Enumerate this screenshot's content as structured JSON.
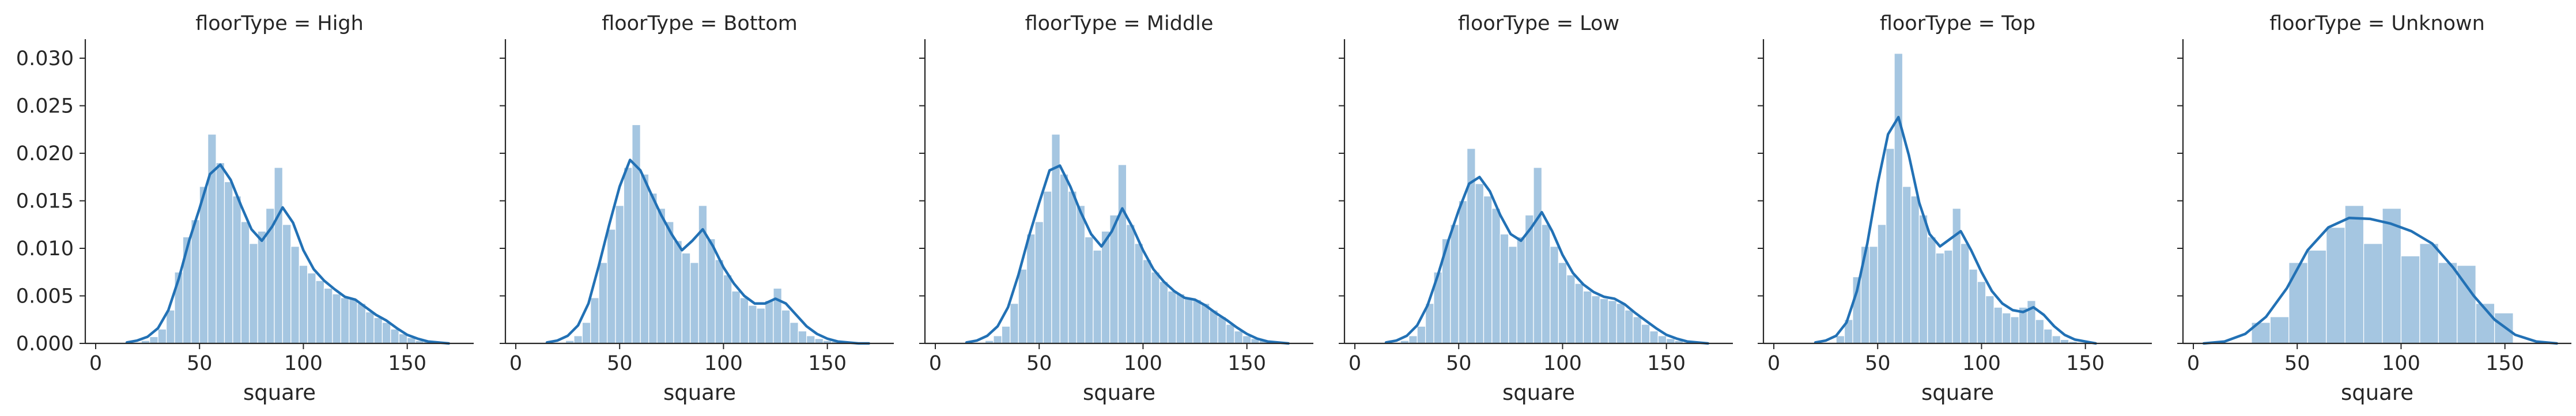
{
  "figure": {
    "hist_color": "#a5c6e1",
    "kde_color": "#2271b5",
    "axis_color": "#262626"
  },
  "chart_data": [
    {
      "type": "histogram-kde",
      "title": "floorType = High",
      "xlabel": "square",
      "ylabel": "",
      "xlim": [
        -5,
        182
      ],
      "ylim": [
        0,
        0.032
      ],
      "xticks": [
        0,
        50,
        100,
        150
      ],
      "yticks": [
        0,
        0.005,
        0.01,
        0.015,
        0.02,
        0.025,
        0.03
      ],
      "hist": {
        "bin_edges": [
          22,
          26,
          30,
          34,
          38,
          42,
          46,
          50,
          54,
          58,
          62,
          66,
          70,
          74,
          78,
          82,
          86,
          90,
          94,
          98,
          102,
          106,
          110,
          114,
          118,
          122,
          126,
          130,
          134,
          138,
          142,
          146,
          150,
          154,
          158,
          162
        ],
        "counts": [
          0.0003,
          0.0007,
          0.0015,
          0.0035,
          0.0075,
          0.0112,
          0.013,
          0.0165,
          0.022,
          0.019,
          0.017,
          0.0155,
          0.0128,
          0.0105,
          0.0118,
          0.0142,
          0.0185,
          0.0125,
          0.0102,
          0.0082,
          0.0074,
          0.0066,
          0.0058,
          0.0052,
          0.0048,
          0.0047,
          0.0042,
          0.0033,
          0.0027,
          0.0022,
          0.0015,
          0.001,
          0.0006,
          0.0003,
          0.0002
        ]
      },
      "kde": {
        "x": [
          15,
          20,
          25,
          30,
          35,
          40,
          45,
          50,
          55,
          60,
          65,
          70,
          75,
          80,
          85,
          90,
          95,
          100,
          105,
          110,
          115,
          120,
          125,
          130,
          135,
          140,
          145,
          150,
          155,
          160,
          165,
          170
        ],
        "y": [
          0.0001,
          0.0003,
          0.0007,
          0.0016,
          0.0035,
          0.0068,
          0.0108,
          0.0142,
          0.0178,
          0.0188,
          0.0172,
          0.0145,
          0.012,
          0.0108,
          0.0123,
          0.0143,
          0.0127,
          0.0098,
          0.0078,
          0.0066,
          0.0057,
          0.0049,
          0.0046,
          0.0038,
          0.003,
          0.0024,
          0.0016,
          0.0009,
          0.0005,
          0.0002,
          0.0001,
          0.0
        ]
      }
    },
    {
      "type": "histogram-kde",
      "title": "floorType = Bottom",
      "xlabel": "square",
      "ylabel": "",
      "xlim": [
        -5,
        182
      ],
      "ylim": [
        0,
        0.032
      ],
      "xticks": [
        0,
        50,
        100,
        150
      ],
      "yticks": [
        0,
        0.005,
        0.01,
        0.015,
        0.02,
        0.025,
        0.03
      ],
      "hist": {
        "bin_edges": [
          24,
          28,
          32,
          36,
          40,
          44,
          48,
          52,
          56,
          60,
          64,
          68,
          72,
          76,
          80,
          84,
          88,
          92,
          96,
          100,
          104,
          108,
          112,
          116,
          120,
          124,
          128,
          132,
          136,
          140,
          144,
          148,
          152,
          156
        ],
        "counts": [
          0.0003,
          0.0008,
          0.0022,
          0.0048,
          0.0085,
          0.012,
          0.0145,
          0.0185,
          0.023,
          0.0178,
          0.0158,
          0.0142,
          0.0128,
          0.0108,
          0.0095,
          0.0085,
          0.0145,
          0.011,
          0.0088,
          0.0072,
          0.0055,
          0.0048,
          0.004,
          0.0037,
          0.0045,
          0.0058,
          0.0035,
          0.0022,
          0.0013,
          0.0008,
          0.0005,
          0.0003,
          0.0002
        ]
      },
      "kde": {
        "x": [
          15,
          20,
          25,
          30,
          35,
          40,
          45,
          50,
          55,
          60,
          65,
          70,
          75,
          80,
          85,
          90,
          95,
          100,
          105,
          110,
          115,
          120,
          125,
          130,
          135,
          140,
          145,
          150,
          155,
          160,
          165,
          170
        ],
        "y": [
          0.0001,
          0.0003,
          0.0008,
          0.0019,
          0.0042,
          0.0082,
          0.0125,
          0.0165,
          0.0193,
          0.0182,
          0.0158,
          0.0135,
          0.0115,
          0.0098,
          0.0108,
          0.012,
          0.0102,
          0.008,
          0.0063,
          0.005,
          0.0042,
          0.0042,
          0.0047,
          0.0042,
          0.003,
          0.0018,
          0.001,
          0.0005,
          0.0002,
          0.0001,
          0.0,
          0.0
        ]
      }
    },
    {
      "type": "histogram-kde",
      "title": "floorType = Middle",
      "xlabel": "square",
      "ylabel": "",
      "xlim": [
        -5,
        182
      ],
      "ylim": [
        0,
        0.032
      ],
      "xticks": [
        0,
        50,
        100,
        150
      ],
      "yticks": [
        0,
        0.005,
        0.01,
        0.015,
        0.02,
        0.025,
        0.03
      ],
      "hist": {
        "bin_edges": [
          24,
          28,
          32,
          36,
          40,
          44,
          48,
          52,
          56,
          60,
          64,
          68,
          72,
          76,
          80,
          84,
          88,
          92,
          96,
          100,
          104,
          108,
          112,
          116,
          120,
          124,
          128,
          132,
          136,
          140,
          144,
          148,
          152,
          156,
          160
        ],
        "counts": [
          0.0003,
          0.0008,
          0.0018,
          0.0042,
          0.0078,
          0.0115,
          0.0128,
          0.016,
          0.022,
          0.0178,
          0.016,
          0.0145,
          0.0112,
          0.0098,
          0.0118,
          0.0135,
          0.0188,
          0.0125,
          0.0105,
          0.0088,
          0.0075,
          0.0065,
          0.0055,
          0.0052,
          0.0048,
          0.0046,
          0.0042,
          0.0035,
          0.0028,
          0.002,
          0.0013,
          0.0008,
          0.0005,
          0.0003
        ]
      },
      "kde": {
        "x": [
          15,
          20,
          25,
          30,
          35,
          40,
          45,
          50,
          55,
          60,
          65,
          70,
          75,
          80,
          85,
          90,
          95,
          100,
          105,
          110,
          115,
          120,
          125,
          130,
          135,
          140,
          145,
          150,
          155,
          160,
          165,
          170
        ],
        "y": [
          0.0001,
          0.0003,
          0.0008,
          0.0018,
          0.0038,
          0.0072,
          0.0112,
          0.0148,
          0.0182,
          0.0187,
          0.0165,
          0.0138,
          0.0115,
          0.0102,
          0.0118,
          0.0142,
          0.0122,
          0.0098,
          0.0078,
          0.0065,
          0.0055,
          0.0048,
          0.0046,
          0.004,
          0.0032,
          0.0025,
          0.0017,
          0.001,
          0.0005,
          0.0002,
          0.0001,
          0.0
        ]
      }
    },
    {
      "type": "histogram-kde",
      "title": "floorType = Low",
      "xlabel": "square",
      "ylabel": "",
      "xlim": [
        -5,
        182
      ],
      "ylim": [
        0,
        0.032
      ],
      "xticks": [
        0,
        50,
        100,
        150
      ],
      "yticks": [
        0,
        0.005,
        0.01,
        0.015,
        0.02,
        0.025,
        0.03
      ],
      "hist": {
        "bin_edges": [
          22,
          26,
          30,
          34,
          38,
          42,
          46,
          50,
          54,
          58,
          62,
          66,
          70,
          74,
          78,
          82,
          86,
          90,
          94,
          98,
          102,
          106,
          110,
          114,
          118,
          122,
          126,
          130,
          134,
          138,
          142,
          146,
          150,
          154,
          158
        ],
        "counts": [
          0.0003,
          0.0008,
          0.0018,
          0.0042,
          0.0075,
          0.011,
          0.0125,
          0.015,
          0.0205,
          0.0168,
          0.0155,
          0.0142,
          0.0115,
          0.0102,
          0.0112,
          0.0135,
          0.0185,
          0.0125,
          0.0102,
          0.0085,
          0.0072,
          0.0063,
          0.0055,
          0.005,
          0.0047,
          0.0045,
          0.0042,
          0.0035,
          0.0028,
          0.002,
          0.0013,
          0.0008,
          0.0005,
          0.0003
        ]
      },
      "kde": {
        "x": [
          15,
          20,
          25,
          30,
          35,
          40,
          45,
          50,
          55,
          60,
          65,
          70,
          75,
          80,
          85,
          90,
          95,
          100,
          105,
          110,
          115,
          120,
          125,
          130,
          135,
          140,
          145,
          150,
          155,
          160,
          165,
          170
        ],
        "y": [
          0.0001,
          0.0003,
          0.0008,
          0.0019,
          0.004,
          0.0072,
          0.0108,
          0.014,
          0.0168,
          0.0175,
          0.016,
          0.0135,
          0.0115,
          0.0108,
          0.0122,
          0.0138,
          0.0118,
          0.0093,
          0.0074,
          0.0062,
          0.0054,
          0.0049,
          0.0047,
          0.0041,
          0.0032,
          0.0024,
          0.0016,
          0.0009,
          0.0005,
          0.0002,
          0.0001,
          0.0
        ]
      }
    },
    {
      "type": "histogram-kde",
      "title": "floorType = Top",
      "xlabel": "square",
      "ylabel": "",
      "xlim": [
        -5,
        182
      ],
      "ylim": [
        0,
        0.032
      ],
      "xticks": [
        0,
        50,
        100,
        150
      ],
      "yticks": [
        0,
        0.005,
        0.01,
        0.015,
        0.02,
        0.025,
        0.03
      ],
      "hist": {
        "bin_edges": [
          30,
          34,
          38,
          42,
          46,
          50,
          54,
          58,
          62,
          66,
          70,
          74,
          78,
          82,
          86,
          90,
          94,
          98,
          102,
          106,
          110,
          114,
          118,
          122,
          126,
          130,
          134,
          138,
          142,
          146
        ],
        "counts": [
          0.0008,
          0.0025,
          0.007,
          0.0102,
          0.0102,
          0.0125,
          0.0205,
          0.0305,
          0.0165,
          0.0155,
          0.0135,
          0.0112,
          0.0095,
          0.0098,
          0.0142,
          0.0105,
          0.0078,
          0.0065,
          0.005,
          0.0038,
          0.0032,
          0.0028,
          0.0038,
          0.0045,
          0.0025,
          0.0015,
          0.0008,
          0.0004,
          0.0002
        ]
      },
      "kde": {
        "x": [
          20,
          25,
          30,
          35,
          40,
          45,
          50,
          55,
          60,
          65,
          70,
          75,
          80,
          85,
          90,
          95,
          100,
          105,
          110,
          115,
          120,
          125,
          130,
          135,
          140,
          145,
          150,
          155
        ],
        "y": [
          0.0001,
          0.0003,
          0.0008,
          0.0022,
          0.0055,
          0.0105,
          0.0168,
          0.022,
          0.0238,
          0.0198,
          0.0148,
          0.0115,
          0.0102,
          0.011,
          0.0118,
          0.0098,
          0.0075,
          0.0055,
          0.0042,
          0.0035,
          0.0033,
          0.0038,
          0.003,
          0.0018,
          0.0009,
          0.0004,
          0.0002,
          0.0
        ]
      }
    },
    {
      "type": "histogram-kde",
      "title": "floorType = Unknown",
      "xlabel": "square",
      "ylabel": "",
      "xlim": [
        -5,
        182
      ],
      "ylim": [
        0,
        0.032
      ],
      "xticks": [
        0,
        50,
        100,
        150
      ],
      "yticks": [
        0,
        0.005,
        0.01,
        0.015,
        0.02,
        0.025,
        0.03
      ],
      "hist": {
        "bin_edges": [
          28,
          37,
          46,
          55,
          64,
          73,
          82,
          91,
          100,
          109,
          118,
          127,
          136,
          145,
          154
        ],
        "counts": [
          0.0022,
          0.0028,
          0.0085,
          0.0098,
          0.0122,
          0.0145,
          0.0105,
          0.0142,
          0.0092,
          0.0105,
          0.0085,
          0.0082,
          0.0042,
          0.0032
        ]
      },
      "kde": {
        "x": [
          5,
          15,
          25,
          35,
          45,
          55,
          65,
          75,
          85,
          95,
          105,
          115,
          125,
          135,
          145,
          155,
          165,
          175
        ],
        "y": [
          0.0,
          0.0002,
          0.001,
          0.0028,
          0.0058,
          0.0098,
          0.0122,
          0.0132,
          0.0131,
          0.0126,
          0.0118,
          0.0105,
          0.008,
          0.005,
          0.0025,
          0.0009,
          0.0002,
          0.0
        ]
      }
    }
  ]
}
